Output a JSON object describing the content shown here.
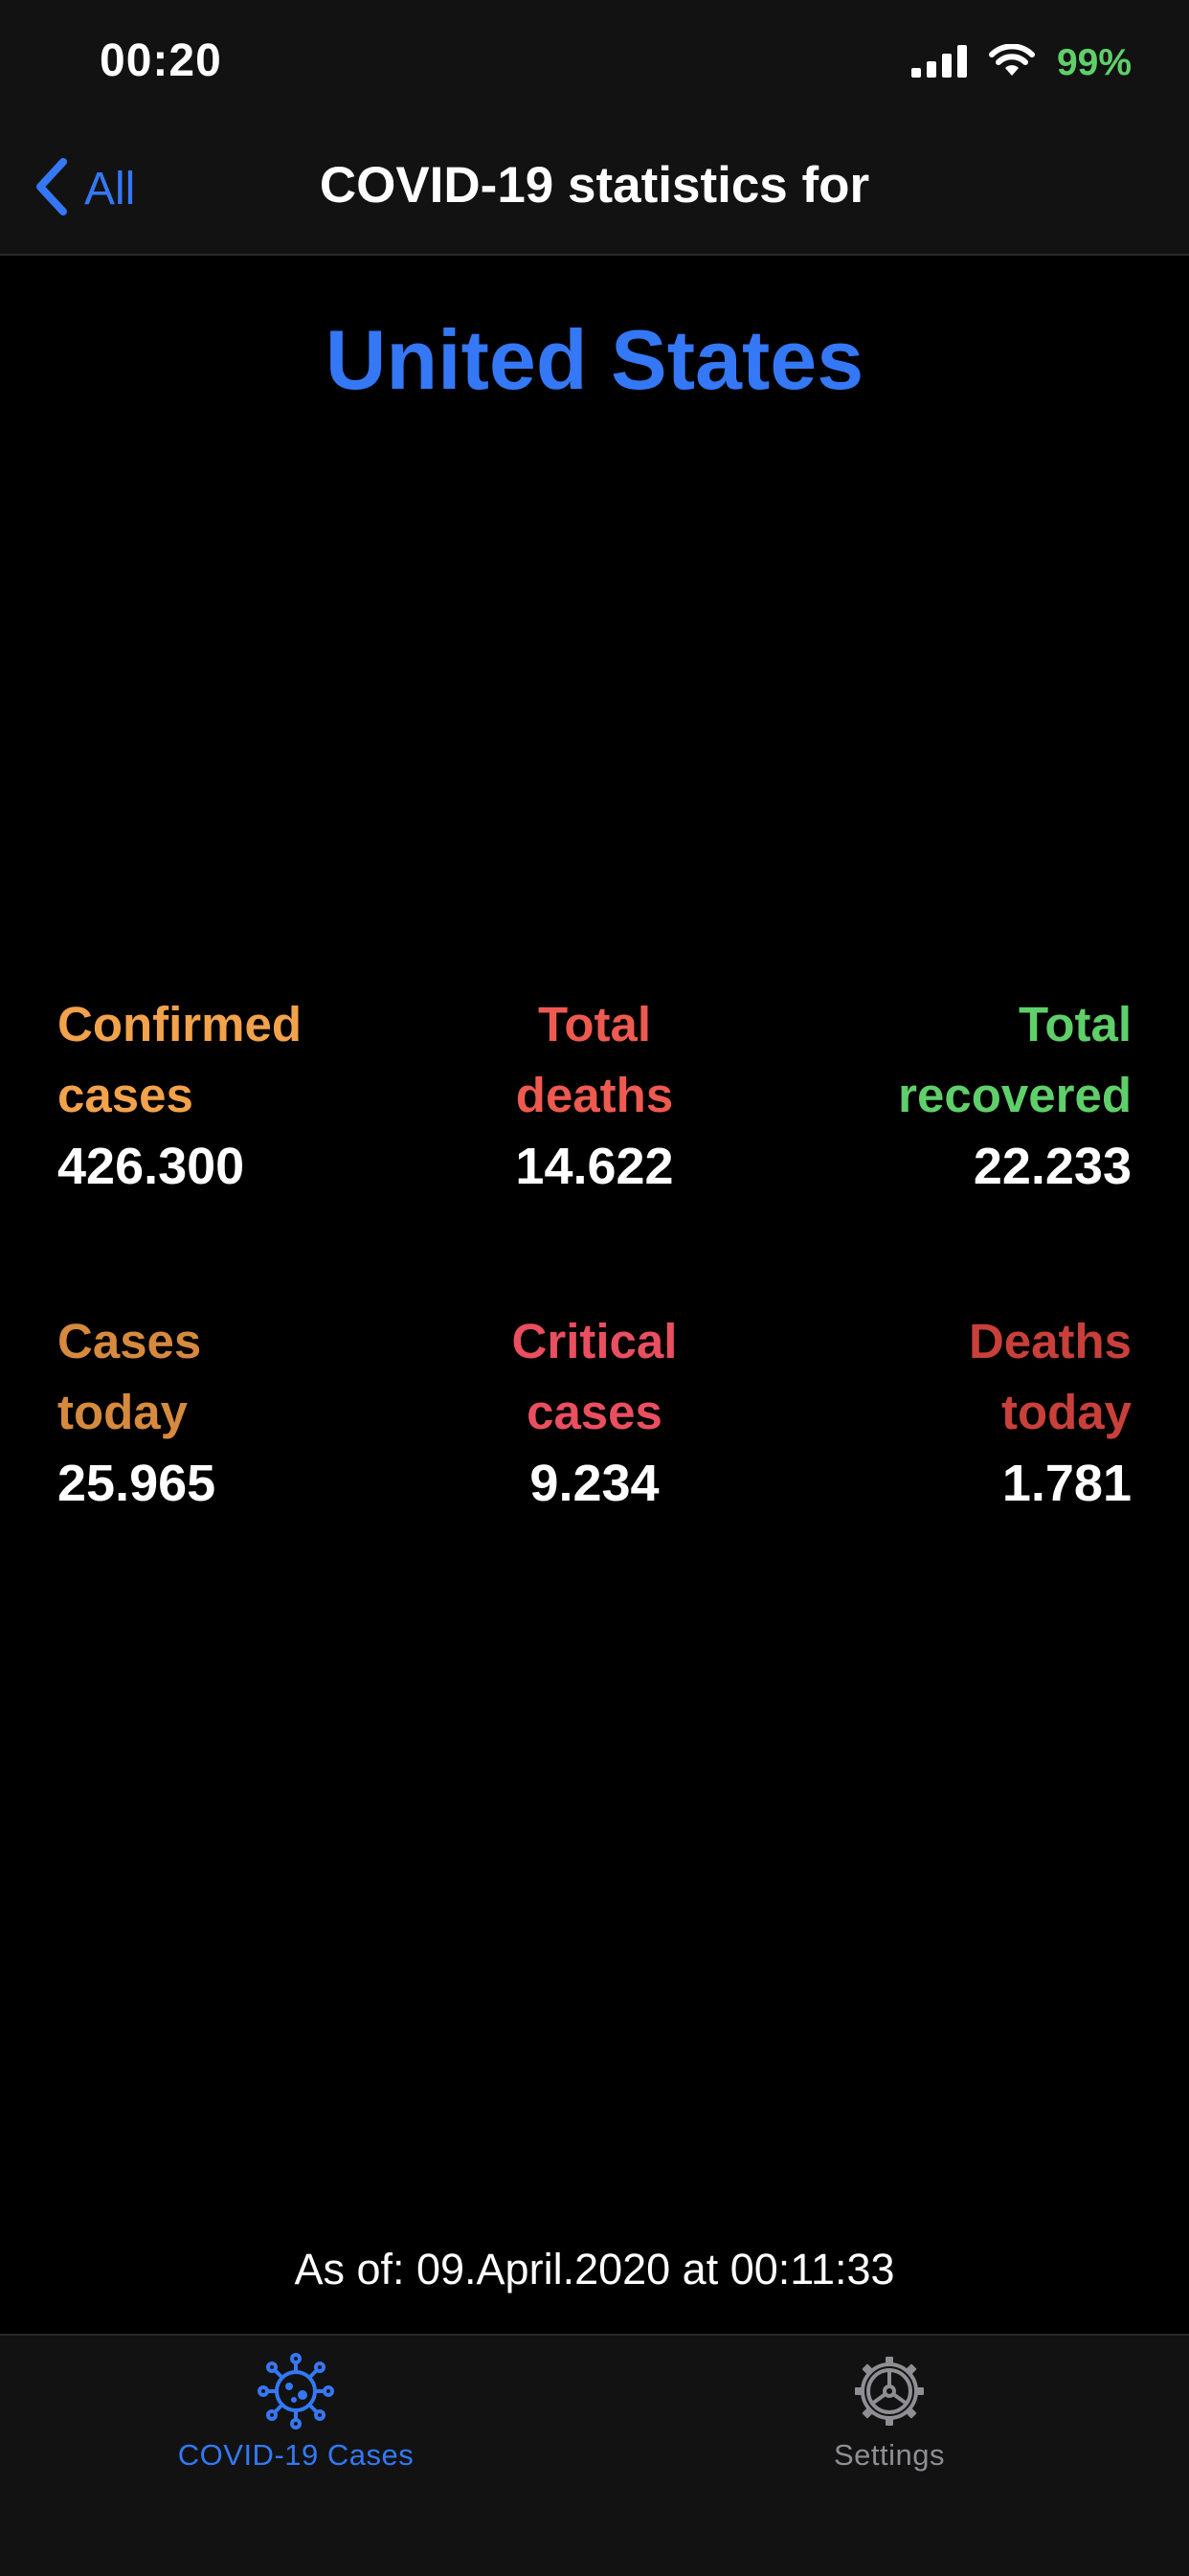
{
  "status_bar": {
    "time": "00:20",
    "battery": "99%",
    "battery_color": "#5fcf6a",
    "icons": [
      "cellular-signal-icon",
      "wifi-icon"
    ]
  },
  "nav": {
    "back_label": "All",
    "title": "COVID-19 statistics for",
    "accent_color": "#3478f6"
  },
  "country": {
    "name": "United States",
    "color": "#3478f6"
  },
  "stats": {
    "confirmed": {
      "label_line1": "Confirmed",
      "label_line2": "cases",
      "value": "426.300",
      "color": "#f2a24a"
    },
    "total_deaths": {
      "label_line1": "Total",
      "label_line2": "deaths",
      "value": "14.622",
      "color": "#ee5a4f"
    },
    "total_recovered": {
      "label_line1": "Total",
      "label_line2": "recovered",
      "value": "22.233",
      "color": "#5fcf6a"
    },
    "cases_today": {
      "label_line1": "Cases",
      "label_line2": "today",
      "value": "25.965",
      "color": "#d68a3d"
    },
    "critical_cases": {
      "label_line1": "Critical",
      "label_line2": "cases",
      "value": "9.234",
      "color": "#ea4f5f"
    },
    "deaths_today": {
      "label_line1": "Deaths",
      "label_line2": "today",
      "value": "1.781",
      "color": "#c9403a"
    }
  },
  "as_of": "As of: 09.April.2020 at 00:11:33",
  "tab_bar": {
    "tabs": [
      {
        "label": "COVID-19 Cases",
        "icon": "virus-icon",
        "selected": true,
        "color": "#3478f6"
      },
      {
        "label": "Settings",
        "icon": "gear-icon",
        "selected": false,
        "color": "#8e8e93"
      }
    ]
  }
}
